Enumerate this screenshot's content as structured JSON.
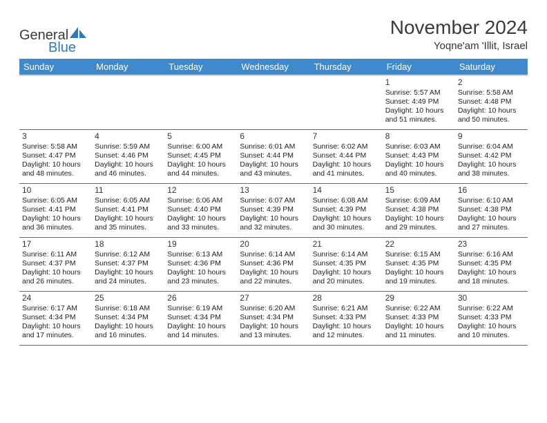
{
  "brand": {
    "line1": "General",
    "line2": "Blue",
    "color_dark": "#3a3a3a",
    "color_blue": "#2f79bd",
    "sail_fill": "#2f79bd"
  },
  "header": {
    "title": "November 2024",
    "location": "Yoqne'am 'Illit, Israel"
  },
  "style": {
    "header_bg": "#3f8acc",
    "header_fg": "#ffffff",
    "grid_line": "#4f6f88",
    "background": "#ffffff",
    "title_fontsize": 28,
    "dayhead_fontsize": 13,
    "cell_fontsize": 10.5
  },
  "days": [
    "Sunday",
    "Monday",
    "Tuesday",
    "Wednesday",
    "Thursday",
    "Friday",
    "Saturday"
  ],
  "weeks": [
    [
      null,
      null,
      null,
      null,
      null,
      {
        "n": "1",
        "sunrise": "Sunrise: 5:57 AM",
        "sunset": "Sunset: 4:49 PM",
        "daylight": "Daylight: 10 hours and 51 minutes."
      },
      {
        "n": "2",
        "sunrise": "Sunrise: 5:58 AM",
        "sunset": "Sunset: 4:48 PM",
        "daylight": "Daylight: 10 hours and 50 minutes."
      }
    ],
    [
      {
        "n": "3",
        "sunrise": "Sunrise: 5:58 AM",
        "sunset": "Sunset: 4:47 PM",
        "daylight": "Daylight: 10 hours and 48 minutes."
      },
      {
        "n": "4",
        "sunrise": "Sunrise: 5:59 AM",
        "sunset": "Sunset: 4:46 PM",
        "daylight": "Daylight: 10 hours and 46 minutes."
      },
      {
        "n": "5",
        "sunrise": "Sunrise: 6:00 AM",
        "sunset": "Sunset: 4:45 PM",
        "daylight": "Daylight: 10 hours and 44 minutes."
      },
      {
        "n": "6",
        "sunrise": "Sunrise: 6:01 AM",
        "sunset": "Sunset: 4:44 PM",
        "daylight": "Daylight: 10 hours and 43 minutes."
      },
      {
        "n": "7",
        "sunrise": "Sunrise: 6:02 AM",
        "sunset": "Sunset: 4:44 PM",
        "daylight": "Daylight: 10 hours and 41 minutes."
      },
      {
        "n": "8",
        "sunrise": "Sunrise: 6:03 AM",
        "sunset": "Sunset: 4:43 PM",
        "daylight": "Daylight: 10 hours and 40 minutes."
      },
      {
        "n": "9",
        "sunrise": "Sunrise: 6:04 AM",
        "sunset": "Sunset: 4:42 PM",
        "daylight": "Daylight: 10 hours and 38 minutes."
      }
    ],
    [
      {
        "n": "10",
        "sunrise": "Sunrise: 6:05 AM",
        "sunset": "Sunset: 4:41 PM",
        "daylight": "Daylight: 10 hours and 36 minutes."
      },
      {
        "n": "11",
        "sunrise": "Sunrise: 6:05 AM",
        "sunset": "Sunset: 4:41 PM",
        "daylight": "Daylight: 10 hours and 35 minutes."
      },
      {
        "n": "12",
        "sunrise": "Sunrise: 6:06 AM",
        "sunset": "Sunset: 4:40 PM",
        "daylight": "Daylight: 10 hours and 33 minutes."
      },
      {
        "n": "13",
        "sunrise": "Sunrise: 6:07 AM",
        "sunset": "Sunset: 4:39 PM",
        "daylight": "Daylight: 10 hours and 32 minutes."
      },
      {
        "n": "14",
        "sunrise": "Sunrise: 6:08 AM",
        "sunset": "Sunset: 4:39 PM",
        "daylight": "Daylight: 10 hours and 30 minutes."
      },
      {
        "n": "15",
        "sunrise": "Sunrise: 6:09 AM",
        "sunset": "Sunset: 4:38 PM",
        "daylight": "Daylight: 10 hours and 29 minutes."
      },
      {
        "n": "16",
        "sunrise": "Sunrise: 6:10 AM",
        "sunset": "Sunset: 4:38 PM",
        "daylight": "Daylight: 10 hours and 27 minutes."
      }
    ],
    [
      {
        "n": "17",
        "sunrise": "Sunrise: 6:11 AM",
        "sunset": "Sunset: 4:37 PM",
        "daylight": "Daylight: 10 hours and 26 minutes."
      },
      {
        "n": "18",
        "sunrise": "Sunrise: 6:12 AM",
        "sunset": "Sunset: 4:37 PM",
        "daylight": "Daylight: 10 hours and 24 minutes."
      },
      {
        "n": "19",
        "sunrise": "Sunrise: 6:13 AM",
        "sunset": "Sunset: 4:36 PM",
        "daylight": "Daylight: 10 hours and 23 minutes."
      },
      {
        "n": "20",
        "sunrise": "Sunrise: 6:14 AM",
        "sunset": "Sunset: 4:36 PM",
        "daylight": "Daylight: 10 hours and 22 minutes."
      },
      {
        "n": "21",
        "sunrise": "Sunrise: 6:14 AM",
        "sunset": "Sunset: 4:35 PM",
        "daylight": "Daylight: 10 hours and 20 minutes."
      },
      {
        "n": "22",
        "sunrise": "Sunrise: 6:15 AM",
        "sunset": "Sunset: 4:35 PM",
        "daylight": "Daylight: 10 hours and 19 minutes."
      },
      {
        "n": "23",
        "sunrise": "Sunrise: 6:16 AM",
        "sunset": "Sunset: 4:35 PM",
        "daylight": "Daylight: 10 hours and 18 minutes."
      }
    ],
    [
      {
        "n": "24",
        "sunrise": "Sunrise: 6:17 AM",
        "sunset": "Sunset: 4:34 PM",
        "daylight": "Daylight: 10 hours and 17 minutes."
      },
      {
        "n": "25",
        "sunrise": "Sunrise: 6:18 AM",
        "sunset": "Sunset: 4:34 PM",
        "daylight": "Daylight: 10 hours and 16 minutes."
      },
      {
        "n": "26",
        "sunrise": "Sunrise: 6:19 AM",
        "sunset": "Sunset: 4:34 PM",
        "daylight": "Daylight: 10 hours and 14 minutes."
      },
      {
        "n": "27",
        "sunrise": "Sunrise: 6:20 AM",
        "sunset": "Sunset: 4:34 PM",
        "daylight": "Daylight: 10 hours and 13 minutes."
      },
      {
        "n": "28",
        "sunrise": "Sunrise: 6:21 AM",
        "sunset": "Sunset: 4:33 PM",
        "daylight": "Daylight: 10 hours and 12 minutes."
      },
      {
        "n": "29",
        "sunrise": "Sunrise: 6:22 AM",
        "sunset": "Sunset: 4:33 PM",
        "daylight": "Daylight: 10 hours and 11 minutes."
      },
      {
        "n": "30",
        "sunrise": "Sunrise: 6:22 AM",
        "sunset": "Sunset: 4:33 PM",
        "daylight": "Daylight: 10 hours and 10 minutes."
      }
    ]
  ]
}
